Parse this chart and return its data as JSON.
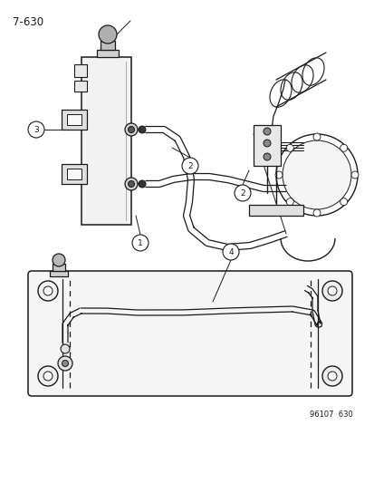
{
  "page_id": "7-630",
  "bg_color": "#ffffff",
  "line_color": "#1a1a1a",
  "fig_width": 4.14,
  "fig_height": 5.33,
  "dpi": 100,
  "bottom_text": "96107  630"
}
